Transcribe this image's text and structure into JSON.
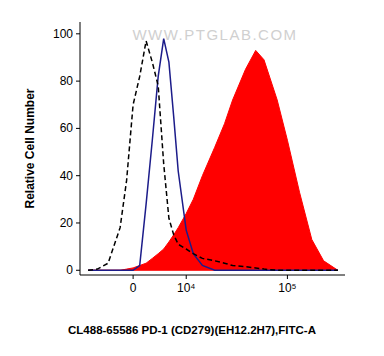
{
  "chart_data": {
    "type": "histogram_overlay",
    "x_label": "CL488-65586 PD-1 (CD279)(EH12.2H7),FITC-A",
    "y_label": "Relative Cell Number",
    "annotations": [
      "WWW.PTGLAB.COM"
    ],
    "log": "x",
    "xlim": [
      -10000,
      350000
    ],
    "xticks": [
      0,
      {
        "value": 10000,
        "label": "10⁴"
      },
      {
        "value": 100000,
        "label": "10⁵"
      }
    ],
    "ylim": [
      -2,
      105
    ],
    "yticks": [
      0,
      20,
      40,
      60,
      80,
      100
    ],
    "x": [
      -8000,
      -6000,
      -4000,
      -2000,
      -1000,
      0,
      1000,
      2000,
      3000,
      4000,
      5000,
      6000,
      7000,
      8000,
      10000,
      12000,
      15000,
      20000,
      25000,
      30000,
      40000,
      50000,
      60000,
      80000,
      100000,
      130000,
      170000,
      220000,
      300000
    ],
    "series": [
      {
        "type": "area",
        "color": "#ff0000",
        "line_style": "solid",
        "values": [
          0,
          0,
          0,
          0,
          0.5,
          1,
          2,
          3,
          5,
          7,
          9,
          12,
          15,
          18,
          24,
          30,
          40,
          52,
          62,
          72,
          85,
          93,
          89,
          72,
          55,
          33,
          13,
          4,
          0
        ]
      },
      {
        "type": "line",
        "color": "#1c1c8a",
        "line_style": "solid",
        "values": [
          0,
          0,
          0,
          0,
          0,
          0,
          2,
          28,
          55,
          82,
          98,
          88,
          65,
          42,
          17,
          7,
          2,
          0,
          0,
          0,
          0,
          0,
          0,
          0,
          0,
          0,
          0,
          0,
          0
        ]
      },
      {
        "type": "line",
        "color": "#000000",
        "line_style": "dashed",
        "values": [
          0,
          0.5,
          3,
          18,
          38,
          70,
          82,
          97,
          88,
          78,
          45,
          22,
          15,
          11,
          9,
          7,
          5,
          4,
          3,
          2,
          1.5,
          1,
          0.5,
          0,
          0,
          0,
          0,
          0,
          0
        ]
      }
    ]
  }
}
